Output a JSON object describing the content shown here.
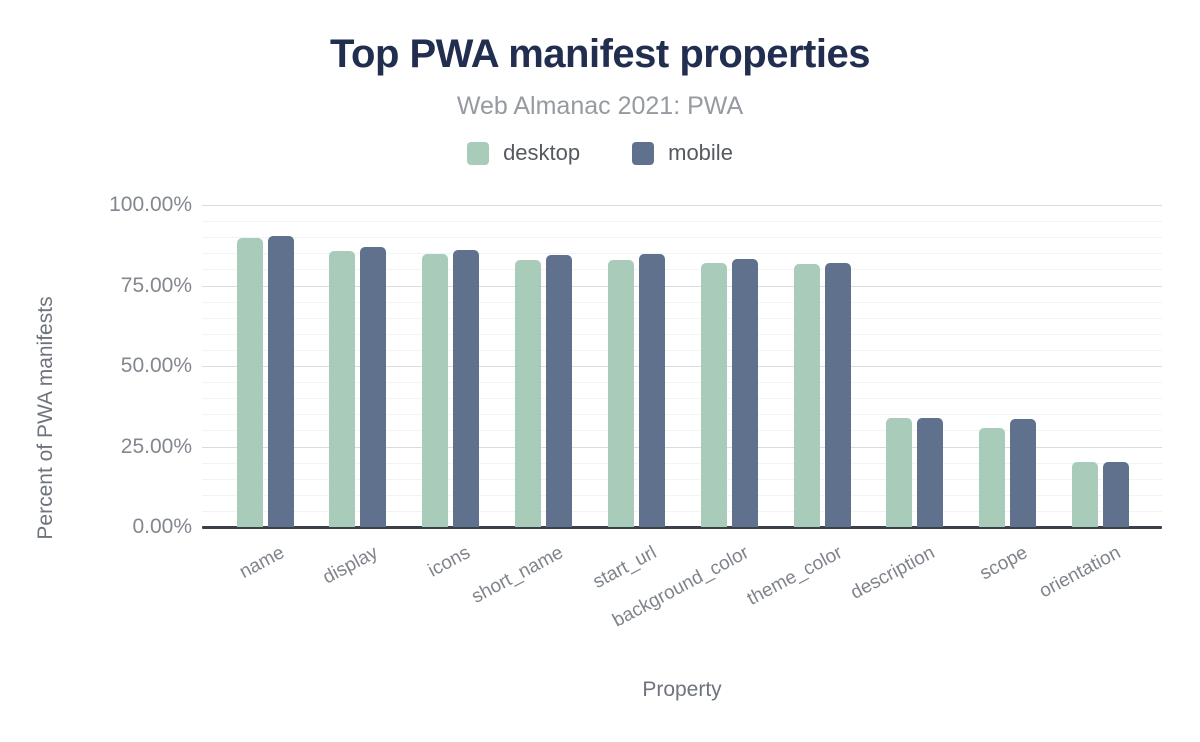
{
  "header": {
    "title": "Top PWA manifest properties",
    "subtitle": "Web Almanac 2021: PWA"
  },
  "legend": {
    "items": [
      {
        "label": "desktop",
        "color": "#a8cbba"
      },
      {
        "label": "mobile",
        "color": "#5f718c"
      }
    ]
  },
  "chart_data": {
    "type": "bar",
    "title": "Top PWA manifest properties",
    "subtitle": "Web Almanac 2021: PWA",
    "xlabel": "Property",
    "ylabel": "Percent of PWA manifests",
    "ylim": [
      0,
      100
    ],
    "grid": true,
    "legend_position": "top",
    "y_minor_step": 5,
    "y_ticks": [
      {
        "value": 100,
        "label": "100.00%"
      },
      {
        "value": 75,
        "label": "75.00%"
      },
      {
        "value": 50,
        "label": "50.00%"
      },
      {
        "value": 25,
        "label": "25.00%"
      },
      {
        "value": 0,
        "label": "0.00%"
      }
    ],
    "categories": [
      "name",
      "display",
      "icons",
      "short_name",
      "start_url",
      "background_color",
      "theme_color",
      "description",
      "scope",
      "orientation"
    ],
    "series": [
      {
        "name": "desktop",
        "color": "#a8cbba",
        "values": [
          89.6,
          85.8,
          84.8,
          83.0,
          82.8,
          82.0,
          81.6,
          33.8,
          30.9,
          20.1
        ]
      },
      {
        "name": "mobile",
        "color": "#5f718c",
        "values": [
          90.4,
          87.0,
          86.0,
          84.5,
          84.7,
          83.3,
          82.1,
          34.0,
          33.4,
          20.3
        ]
      }
    ]
  },
  "colors": {
    "background": "#ffffff",
    "title": "#222e4f",
    "subtitle": "#969aa1",
    "legend_label": "#555a62",
    "axis_text": "#83878f",
    "axis_title": "#6f747c",
    "grid_major": "#d9dbde",
    "grid_minor": "#f2f3f4",
    "baseline": "#3a4049",
    "desktop_bar": "#a8cbba",
    "mobile_bar": "#5f718c"
  }
}
